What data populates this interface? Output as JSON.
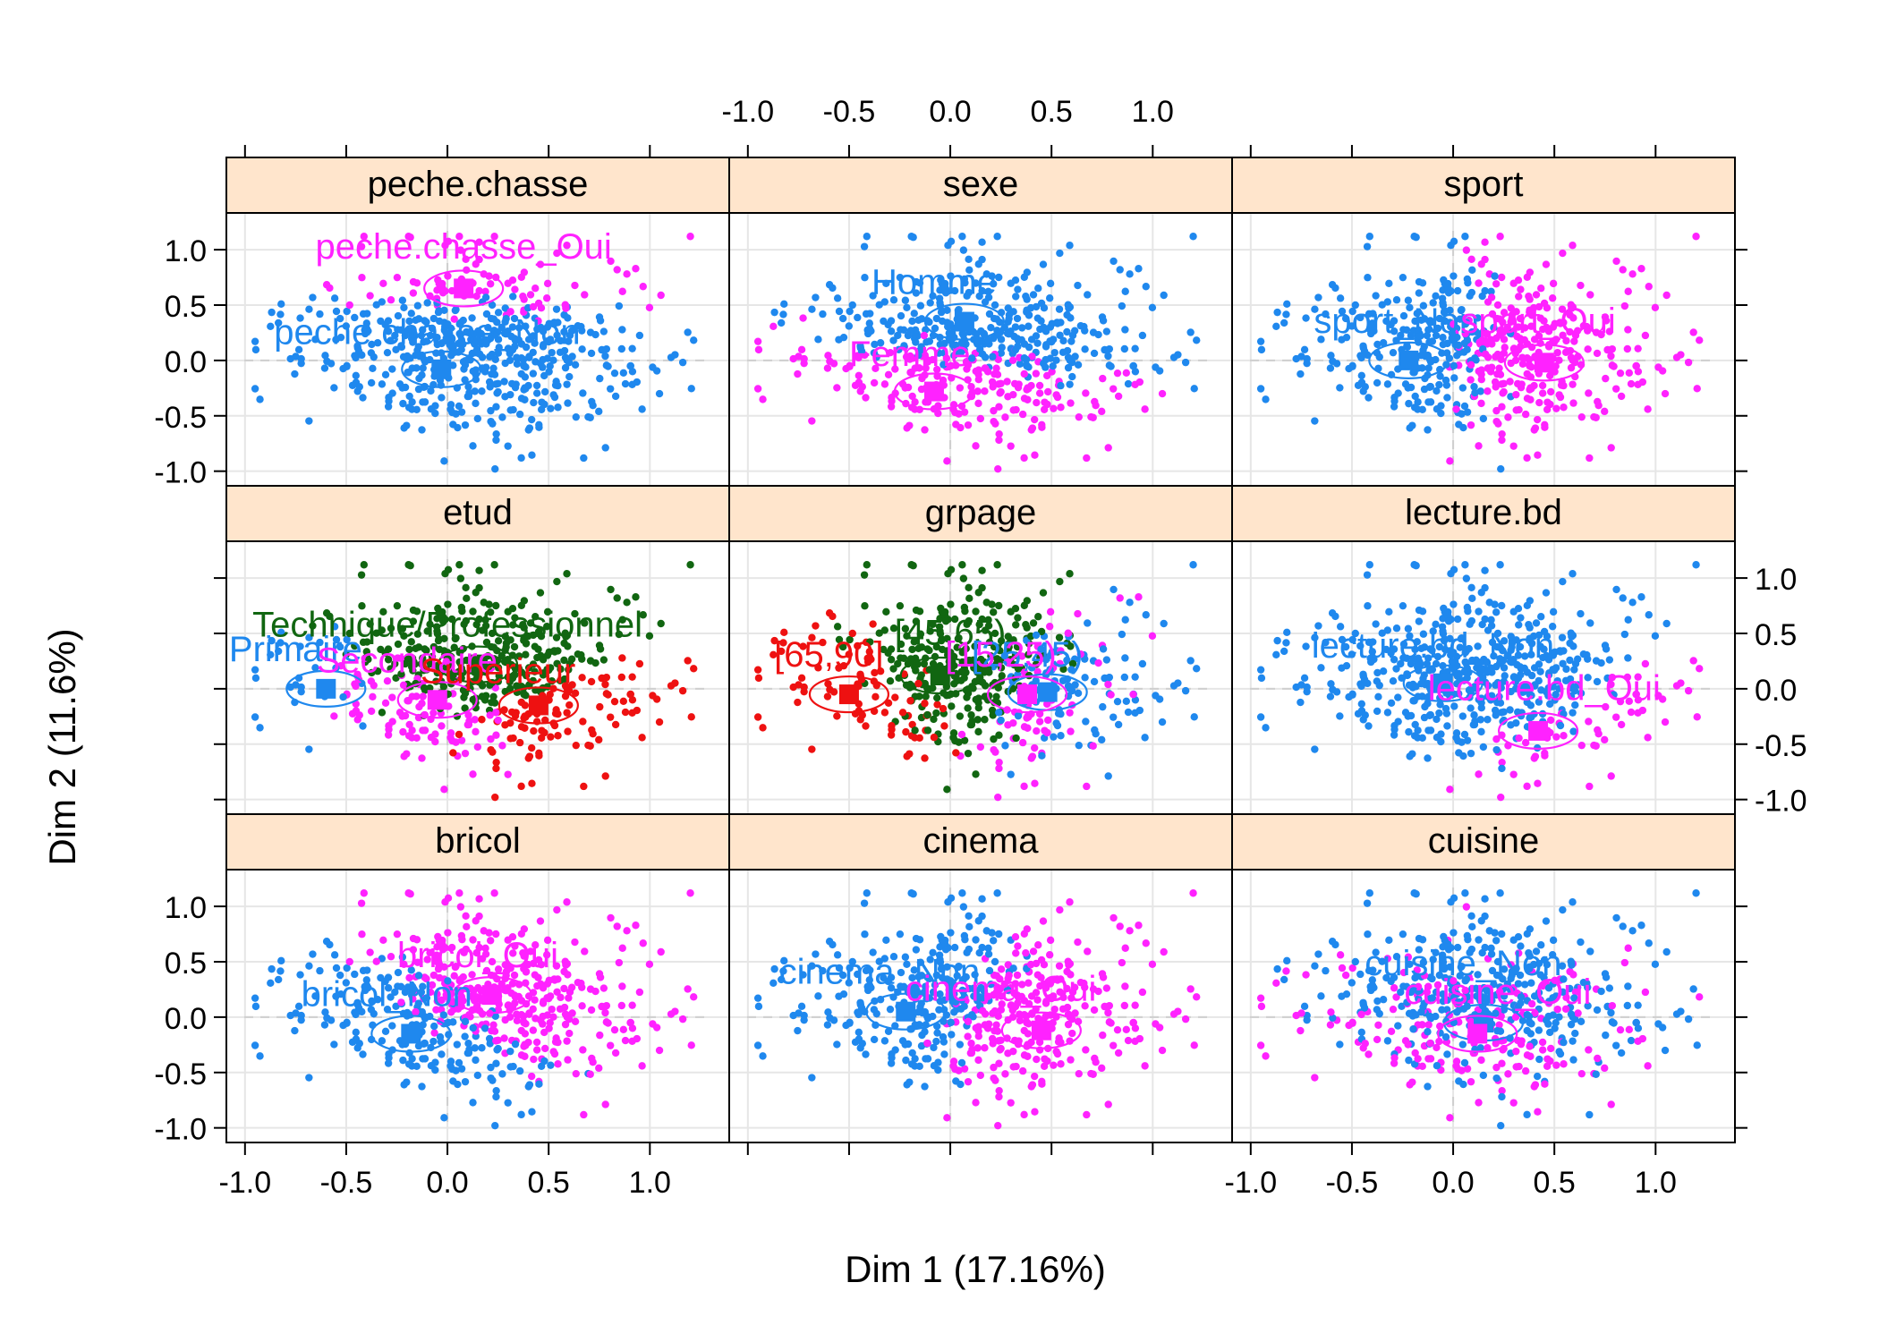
{
  "chart_data": {
    "type": "scatter",
    "xlabel": "Dim 1 (17.16%)",
    "ylabel": "Dim 2 (11.6%)",
    "xlim": [
      -1.0,
      1.3
    ],
    "ylim": [
      -1.0,
      1.2
    ],
    "xticks": [
      "-1.0",
      "-0.5",
      "0.0",
      "0.5",
      "1.0"
    ],
    "yticks": [
      "-1.0",
      "-0.5",
      "0.0",
      "0.5",
      "1.0"
    ],
    "grid": true,
    "colors": {
      "blue": "#1f88ee",
      "magenta": "#ff22ff",
      "red": "#ee1111",
      "green": "#116611",
      "strip": "#ffe5cc"
    },
    "panels": [
      {
        "name": "peche.chasse",
        "categories": [
          {
            "label": "peche.chasse_Oui",
            "color": "#ff22ff",
            "x": 0.08,
            "y": 0.65,
            "lx": 0.08,
            "ly": 0.92,
            "weight": 0.3
          },
          {
            "label": "peche.chasse_Non",
            "color": "#1f88ee",
            "x": -0.03,
            "y": -0.08,
            "lx": -0.1,
            "ly": 0.15,
            "weight": 0.7
          }
        ]
      },
      {
        "name": "sexe",
        "categories": [
          {
            "label": "Homme",
            "color": "#1f88ee",
            "x": 0.07,
            "y": 0.35,
            "lx": -0.08,
            "ly": 0.6,
            "weight": 0.5
          },
          {
            "label": "Femme",
            "color": "#ff22ff",
            "x": -0.08,
            "y": -0.28,
            "lx": -0.2,
            "ly": -0.05,
            "weight": 0.5
          }
        ]
      },
      {
        "name": "sport",
        "categories": [
          {
            "label": "sport_Non",
            "color": "#1f88ee",
            "x": -0.22,
            "y": 0.0,
            "lx": -0.28,
            "ly": 0.25,
            "weight": 0.5
          },
          {
            "label": "sport_Oui",
            "color": "#ff22ff",
            "x": 0.45,
            "y": -0.02,
            "lx": 0.42,
            "ly": 0.25,
            "weight": 0.5
          }
        ]
      },
      {
        "name": "etud",
        "categories": [
          {
            "label": "Technique/Professionnel",
            "color": "#116611",
            "x": 0.15,
            "y": 0.22,
            "lx": 0.0,
            "ly": 0.47,
            "weight": 0.35
          },
          {
            "label": "Primaire",
            "color": "#1f88ee",
            "x": -0.6,
            "y": 0.0,
            "lx": -0.75,
            "ly": 0.25,
            "weight": 0.15
          },
          {
            "label": "Secondaire",
            "color": "#ff22ff",
            "x": -0.05,
            "y": -0.1,
            "lx": -0.2,
            "ly": 0.15,
            "weight": 0.25
          },
          {
            "label": "Superieur",
            "color": "#ee1111",
            "x": 0.45,
            "y": -0.15,
            "lx": 0.25,
            "ly": 0.05,
            "weight": 0.25
          }
        ]
      },
      {
        "name": "grpage",
        "categories": [
          {
            "label": "[65,90]",
            "color": "#ee1111",
            "x": -0.5,
            "y": -0.05,
            "lx": -0.6,
            "ly": 0.2,
            "weight": 0.3
          },
          {
            "label": "[45,65)",
            "color": "#116611",
            "x": -0.05,
            "y": 0.12,
            "lx": 0.0,
            "ly": 0.4,
            "weight": 0.3
          },
          {
            "label": "[25,45)",
            "color": "#1f88ee",
            "x": 0.48,
            "y": -0.03,
            "lx": 0.38,
            "ly": 0.2,
            "weight": 0.2
          },
          {
            "label": "[15,25)",
            "color": "#ff22ff",
            "x": 0.38,
            "y": -0.05,
            "lx": 0.25,
            "ly": 0.2,
            "weight": 0.2
          }
        ]
      },
      {
        "name": "lecture.bd",
        "categories": [
          {
            "label": "lecture.bd_Non",
            "color": "#1f88ee",
            "x": -0.05,
            "y": 0.05,
            "lx": -0.1,
            "ly": 0.28,
            "weight": 0.7
          },
          {
            "label": "lecture.bd_Oui",
            "color": "#ff22ff",
            "x": 0.42,
            "y": -0.38,
            "lx": 0.45,
            "ly": -0.1,
            "weight": 0.3
          }
        ]
      },
      {
        "name": "bricol",
        "categories": [
          {
            "label": "bricol_Oui",
            "color": "#ff22ff",
            "x": 0.22,
            "y": 0.2,
            "lx": 0.15,
            "ly": 0.45,
            "weight": 0.5
          },
          {
            "label": "bricol_Non",
            "color": "#1f88ee",
            "x": -0.18,
            "y": -0.15,
            "lx": -0.3,
            "ly": 0.1,
            "weight": 0.5
          }
        ]
      },
      {
        "name": "cinema",
        "categories": [
          {
            "label": "cinema_Non",
            "color": "#1f88ee",
            "x": -0.22,
            "y": 0.05,
            "lx": -0.35,
            "ly": 0.3,
            "weight": 0.5
          },
          {
            "label": "cinema_Oui",
            "color": "#ff22ff",
            "x": 0.45,
            "y": -0.12,
            "lx": 0.25,
            "ly": 0.15,
            "weight": 0.5
          }
        ]
      },
      {
        "name": "cuisine",
        "categories": [
          {
            "label": "cuisine_Non",
            "color": "#1f88ee",
            "x": 0.15,
            "y": -0.05,
            "lx": 0.05,
            "ly": 0.38,
            "weight": 0.5
          },
          {
            "label": "cuisine_Oui",
            "color": "#ff22ff",
            "x": 0.12,
            "y": -0.15,
            "lx": 0.22,
            "ly": 0.12,
            "weight": 0.5
          }
        ]
      }
    ]
  }
}
